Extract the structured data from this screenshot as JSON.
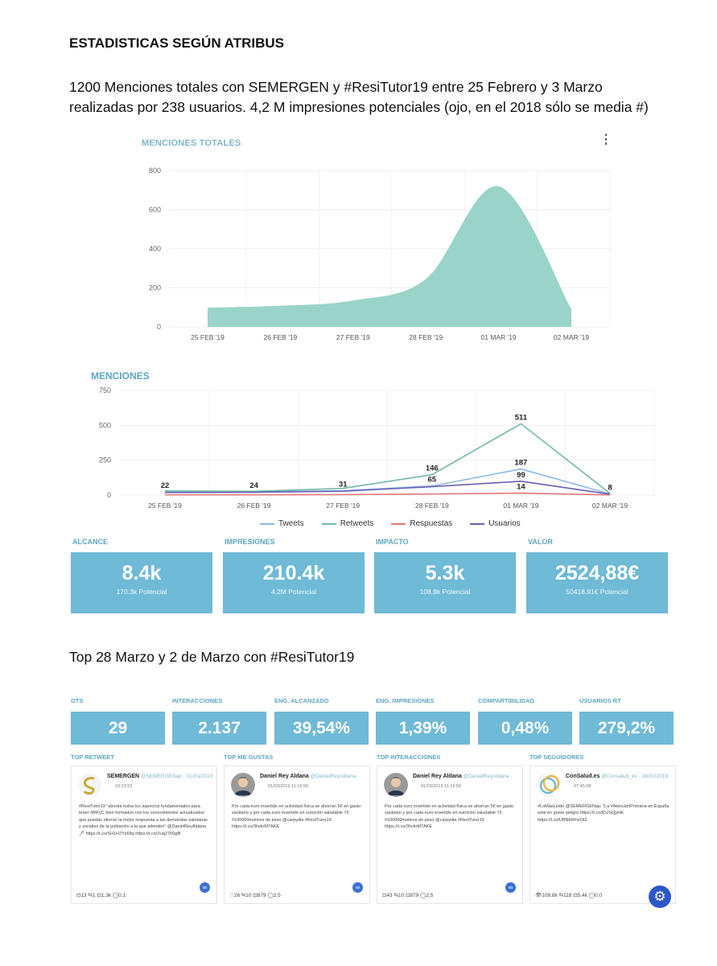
{
  "doc": {
    "title": "ESTADISTICAS SEGÚN ATRIBUS",
    "intro": "1200  Menciones totales con SEMERGEN y #ResiTutor19 entre 25 Febrero y 3 Marzo realizadas por 238 usuarios. 4,2 M impresiones potenciales (ojo, en el 2018 sólo se media #)",
    "section_heading": "Top 28 Marzo y 2 de Marzo con #ResiTutor19"
  },
  "chart_area": {
    "title": "MENCIONES TOTALES",
    "menu_icon": "more-vertical-icon"
  },
  "chart_lines": {
    "title": "MENCIONES",
    "legend": [
      "Tweets",
      "Retweets",
      "Respuestas",
      "Usuarios"
    ]
  },
  "chart_data": [
    {
      "type": "area",
      "title": "MENCIONES TOTALES",
      "categories": [
        "25 FEB '19",
        "26 FEB '19",
        "27 FEB '19",
        "28 FEB '19",
        "01 MAR '19",
        "02 MAR '19"
      ],
      "values": [
        98,
        108,
        135,
        245,
        720,
        90
      ],
      "ylim": [
        0,
        800
      ],
      "yticks": [
        0,
        200,
        400,
        600,
        800
      ],
      "color": "#8fcfc3",
      "grid": true
    },
    {
      "type": "line",
      "title": "MENCIONES",
      "categories": [
        "25 FEB '19",
        "26 FEB '19",
        "27 FEB '19",
        "28 FEB '19",
        "01 MAR '19",
        "02 MAR '19"
      ],
      "ylim": [
        0,
        750
      ],
      "yticks": [
        0,
        250,
        500,
        750
      ],
      "grid": true,
      "legend_position": "bottom",
      "series": [
        {
          "name": "Tweets",
          "values": [
            22,
            24,
            31,
            65,
            187,
            8
          ],
          "color": "#8bb8e8"
        },
        {
          "name": "Retweets",
          "values": [
            30,
            27,
            48,
            146,
            511,
            12
          ],
          "color": "#72b8a8"
        },
        {
          "name": "Respuestas",
          "values": [
            2,
            2,
            3,
            8,
            14,
            1
          ],
          "color": "#e07a7a"
        },
        {
          "name": "Usuarios",
          "values": [
            18,
            20,
            28,
            60,
            99,
            6
          ],
          "color": "#6a5fb8"
        }
      ],
      "data_labels": [
        {
          "x": 0,
          "y": 22,
          "text": "22"
        },
        {
          "x": 1,
          "y": 24,
          "text": "24"
        },
        {
          "x": 2,
          "y": 31,
          "text": "31"
        },
        {
          "x": 3,
          "y": 146,
          "text": "146"
        },
        {
          "x": 3,
          "y": 65,
          "text": "65"
        },
        {
          "x": 4,
          "y": 511,
          "text": "511"
        },
        {
          "x": 4,
          "y": 187,
          "text": "187"
        },
        {
          "x": 4,
          "y": 99,
          "text": "99"
        },
        {
          "x": 4,
          "y": 14,
          "text": "14"
        },
        {
          "x": 5,
          "y": 8,
          "text": "8"
        }
      ]
    }
  ],
  "stats": [
    {
      "label": "ALCANCE",
      "value": "8.4k",
      "sub": "170.3k Potencial"
    },
    {
      "label": "IMPRESIONES",
      "value": "210.4k",
      "sub": "4.2M Potencial"
    },
    {
      "label": "IMPACTO",
      "value": "5.3k",
      "sub": "108.9k Potencial"
    },
    {
      "label": "VALOR",
      "value": "2524,88€",
      "sub": "50418,91€ Potencial"
    }
  ],
  "metrics": [
    {
      "label": "OTS",
      "value": "29"
    },
    {
      "label": "INTERACCIONES",
      "value": "2.137"
    },
    {
      "label": "ENG. ALCANZADO",
      "value": "39,54%"
    },
    {
      "label": "ENG. IMPRESIONES",
      "value": "1,39%"
    },
    {
      "label": "COMPARTIBILIDAD",
      "value": "0,48%"
    },
    {
      "label": "USUARIOS RT",
      "value": "279,2%"
    }
  ],
  "cards": [
    {
      "heading": "TOP RETWEET",
      "author": "SEMERGEN",
      "handle": "@SEMERGENap · 01/03/2019",
      "date": "10:23:53",
      "text": "#ResiTutor19 \"aborda todos los aspectos fundamentales para tener #MFyC bien formados con los conocimientos actualizados que puedan ofrecer la mejor respuesta a las demandas sanitarias y sociales de la población a la que atienden\" @DanielReyAldana 🖊 https://t.co/SH1H7Yx68q https://t.co/Xuq2760g8l",
      "stats": "⊡13  ⇆1  ⊡1.3k  ◯0,1",
      "avatar": "semergen-logo-icon"
    },
    {
      "heading": "TOP ME GUSTAS",
      "author": "Daniel Rey Aldana",
      "handle": "@DanielReyAldana ·",
      "date": "01/03/2019 11:16:50",
      "text": "Por cada euro invertido en actividad física se ahorran 5€ en gasto sanitario y por cada euro invertido en nutrición saludable 7€ #100000motivos de peso @carpydia #ResiTutor19 https://t.co/3hvkrM7AKE",
      "stats": "♡26  ⇆10  ⊡879  ◯2,5",
      "avatar": "person-avatar-icon"
    },
    {
      "heading": "TOP INTERACCIONES",
      "author": "Daniel Rey Aldana",
      "handle": "@DanielReyAldana ·",
      "date": "01/03/2019 11:16:50",
      "text": "Por cada euro invertido en actividad física se ahorran 5€ en gasto sanitario y por cada euro invertido en nutrición saludable 7€ #100000motivos de peso @carpydia #ResiTutor19 https://t.co/3hvkrM7AKE",
      "stats": "⊡43  ⇆10  ⊡879  ◯2,5",
      "avatar": "person-avatar-icon"
    },
    {
      "heading": "TOP SEGUIDORES",
      "author": "ConSalud.es",
      "handle": "@Consalud_es · 28/02/2019",
      "date": "07:45:08",
      "text": "#LoMásLeído @SEMERGENap: \"La #AtenciónPrimaria en España está en grave peligro https://t.co/tOJSQjzHk https://t.co/UBNbWnvOl3",
      "stats": "👁108.8k  ⇆118  ⊡5.4k  ◯0,0",
      "avatar": "consalud-logo-icon"
    }
  ],
  "colors": {
    "accent": "#6fbad6",
    "heading": "#5ea6c2",
    "area": "#8fcfc3",
    "fab": "#2d57c9"
  }
}
